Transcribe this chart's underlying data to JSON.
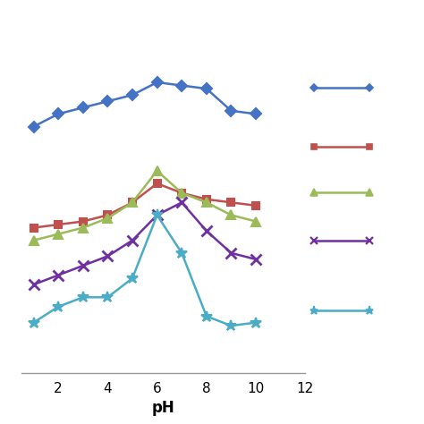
{
  "ph": [
    1,
    2,
    3,
    4,
    5,
    6,
    7,
    8,
    9,
    10
  ],
  "series": [
    {
      "key": "blue_diamond",
      "color": "#4472C4",
      "marker": "D",
      "markersize": 6,
      "linewidth": 1.8,
      "values": [
        78,
        82,
        84,
        86,
        88,
        92,
        91,
        90,
        83,
        82
      ]
    },
    {
      "key": "red_square",
      "color": "#C0504D",
      "marker": "s",
      "markersize": 6,
      "linewidth": 1.8,
      "values": [
        46,
        47,
        48,
        50,
        54,
        60,
        57,
        55,
        54,
        53
      ]
    },
    {
      "key": "green_triangle",
      "color": "#9BBB59",
      "marker": "^",
      "markersize": 7,
      "linewidth": 1.8,
      "values": [
        42,
        44,
        46,
        49,
        54,
        64,
        57,
        54,
        50,
        48
      ]
    },
    {
      "key": "purple_x",
      "color": "#7030A0",
      "marker": "x",
      "markersize": 8,
      "linewidth": 1.8,
      "markeredgewidth": 2.0,
      "values": [
        28,
        31,
        34,
        37,
        42,
        50,
        54,
        45,
        38,
        36
      ]
    },
    {
      "key": "cyan_star",
      "color": "#4BACC6",
      "marker": "*",
      "markersize": 9,
      "linewidth": 1.8,
      "values": [
        16,
        21,
        24,
        24,
        30,
        50,
        38,
        18,
        15,
        16
      ]
    }
  ],
  "xlabel": "pH",
  "xlim": [
    0.5,
    12
  ],
  "xticks": [
    2,
    4,
    6,
    8,
    10,
    12
  ],
  "ylim": [
    0,
    110
  ],
  "yticks": [],
  "background_color": "#ffffff",
  "xlabel_fontsize": 12,
  "xlabel_fontweight": "bold",
  "tick_fontsize": 11
}
